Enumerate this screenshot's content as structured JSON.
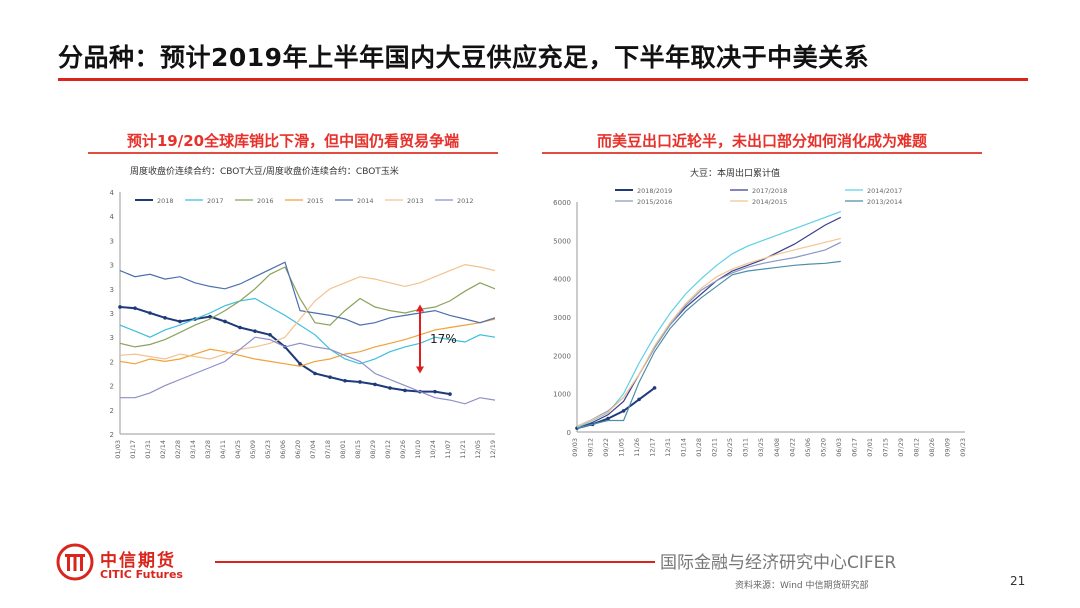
{
  "slide": {
    "title": "分品种：预计2019年上半年国内大豆供应充足，下半年取决于中美关系",
    "page_number": "21",
    "source_note": "资料来源：Wind 中信期货研究部",
    "watermark": "国际金融与经济研究中心CIFER",
    "logo": {
      "cn": "中信期货",
      "en": "CITIC Futures"
    },
    "accent_color": "#d9251c"
  },
  "chart_data": [
    {
      "type": "line",
      "title": "预计19/20全球库销比下滑，但中国仍看贸易争端",
      "subtitle": "周度收盘价连续合约：CBOT大豆/周度收盘价连续合约：CBOT玉米",
      "annotation": "17%",
      "legend_position": "top",
      "ylim": [
        2,
        4
      ],
      "yticks": [
        "2",
        "2",
        "2",
        "2",
        "3",
        "3",
        "3",
        "3",
        "3",
        "4",
        "4"
      ],
      "xticks": [
        "01/03",
        "01/17",
        "01/31",
        "02/14",
        "02/28",
        "03/14",
        "03/28",
        "04/11",
        "04/25",
        "05/09",
        "05/23",
        "06/06",
        "06/20",
        "07/04",
        "07/18",
        "08/01",
        "08/15",
        "08/29",
        "09/12",
        "09/26",
        "10/10",
        "10/24",
        "11/07",
        "11/21",
        "12/05",
        "12/19"
      ],
      "series": [
        {
          "name": "2018",
          "color": "#1f3a7a",
          "values": [
            3.05,
            3.04,
            3.0,
            2.96,
            2.93,
            2.95,
            2.97,
            2.93,
            2.88,
            2.85,
            2.82,
            2.72,
            2.58,
            2.5,
            2.47,
            2.44,
            2.43,
            2.41,
            2.38,
            2.36,
            2.35,
            2.35,
            2.33
          ]
        },
        {
          "name": "2017",
          "color": "#3bbfdf",
          "values": [
            2.9,
            2.85,
            2.8,
            2.86,
            2.9,
            2.95,
            3.0,
            3.06,
            3.1,
            3.12,
            3.05,
            2.98,
            2.9,
            2.82,
            2.7,
            2.62,
            2.58,
            2.62,
            2.68,
            2.72,
            2.75,
            2.8,
            2.78,
            2.76,
            2.82,
            2.8
          ]
        },
        {
          "name": "2016",
          "color": "#8aa35c",
          "values": [
            2.75,
            2.72,
            2.74,
            2.78,
            2.84,
            2.9,
            2.95,
            3.02,
            3.1,
            3.2,
            3.32,
            3.38,
            3.12,
            2.92,
            2.9,
            3.02,
            3.12,
            3.05,
            3.02,
            3.0,
            3.03,
            3.05,
            3.1,
            3.18,
            3.25,
            3.2
          ]
        },
        {
          "name": "2015",
          "color": "#f0a23c",
          "values": [
            2.6,
            2.58,
            2.62,
            2.6,
            2.62,
            2.66,
            2.7,
            2.68,
            2.65,
            2.62,
            2.6,
            2.58,
            2.56,
            2.6,
            2.62,
            2.66,
            2.68,
            2.72,
            2.75,
            2.78,
            2.82,
            2.86,
            2.88,
            2.9,
            2.92,
            2.95
          ]
        },
        {
          "name": "2014",
          "color": "#4c6fb0",
          "values": [
            3.35,
            3.3,
            3.32,
            3.28,
            3.3,
            3.25,
            3.22,
            3.2,
            3.24,
            3.3,
            3.36,
            3.42,
            3.02,
            3.0,
            2.98,
            2.95,
            2.9,
            2.92,
            2.96,
            2.98,
            3.0,
            3.02,
            2.98,
            2.95,
            2.92,
            2.96
          ]
        },
        {
          "name": "2013",
          "color": "#f2c38e",
          "values": [
            2.65,
            2.66,
            2.64,
            2.62,
            2.66,
            2.64,
            2.62,
            2.66,
            2.7,
            2.72,
            2.75,
            2.8,
            2.95,
            3.1,
            3.2,
            3.25,
            3.3,
            3.28,
            3.25,
            3.22,
            3.25,
            3.3,
            3.35,
            3.4,
            3.38,
            3.35
          ]
        },
        {
          "name": "2012",
          "color": "#8e8fc9",
          "values": [
            2.3,
            2.3,
            2.34,
            2.4,
            2.45,
            2.5,
            2.55,
            2.6,
            2.7,
            2.8,
            2.78,
            2.72,
            2.75,
            2.72,
            2.7,
            2.65,
            2.6,
            2.5,
            2.45,
            2.4,
            2.35,
            2.3,
            2.28,
            2.25,
            2.3,
            2.28
          ]
        }
      ]
    },
    {
      "type": "line",
      "title": "而美豆出口近轮半，未出口部分如何消化成为难题",
      "subtitle": "大豆：本周出口累计值",
      "legend_position": "top",
      "ylim": [
        0,
        6000
      ],
      "yticks": [
        "0",
        "1000",
        "2000",
        "3000",
        "4000",
        "5000",
        "6000"
      ],
      "xticks": [
        "09/03",
        "09/12",
        "09/22",
        "11/05",
        "11/26",
        "12/17",
        "12/31",
        "01/14",
        "01/28",
        "02/11",
        "02/25",
        "03/11",
        "03/25",
        "04/08",
        "04/22",
        "05/06",
        "05/20",
        "06/03",
        "06/17",
        "07/01",
        "07/15",
        "07/29",
        "08/12",
        "08/26",
        "09/09",
        "09/23"
      ],
      "series": [
        {
          "name": "2018/2019",
          "color": "#1f3a7a",
          "values": [
            100,
            200,
            350,
            550,
            850,
            1150
          ]
        },
        {
          "name": "2017/2018",
          "color": "#3a3f8f",
          "values": [
            100,
            250,
            450,
            800,
            1500,
            2200,
            2800,
            3250,
            3600,
            3950,
            4200,
            4350,
            4500,
            4700,
            4900,
            5150,
            5400,
            5600
          ]
        },
        {
          "name": "2014/2017",
          "color": "#5fd0e6",
          "values": [
            120,
            300,
            500,
            1000,
            1800,
            2500,
            3100,
            3600,
            4000,
            4350,
            4650,
            4850,
            5000,
            5150,
            5300,
            5450,
            5600,
            5750
          ]
        },
        {
          "name": "2015/2016",
          "color": "#8a96c4",
          "values": [
            150,
            330,
            550,
            900,
            1500,
            2200,
            2800,
            3300,
            3700,
            3950,
            4150,
            4300,
            4400,
            4480,
            4550,
            4650,
            4750,
            4950
          ]
        },
        {
          "name": "2014/2015",
          "color": "#f3c48e",
          "values": [
            150,
            320,
            520,
            900,
            1500,
            2250,
            2850,
            3350,
            3750,
            4050,
            4250,
            4400,
            4520,
            4650,
            4750,
            4850,
            4950,
            5050
          ]
        },
        {
          "name": "2013/2014",
          "color": "#4c8fa8",
          "values": [
            100,
            200,
            300,
            300,
            1300,
            2100,
            2700,
            3150,
            3500,
            3800,
            4100,
            4200,
            4250,
            4300,
            4350,
            4380,
            4400,
            4450
          ]
        }
      ]
    }
  ]
}
